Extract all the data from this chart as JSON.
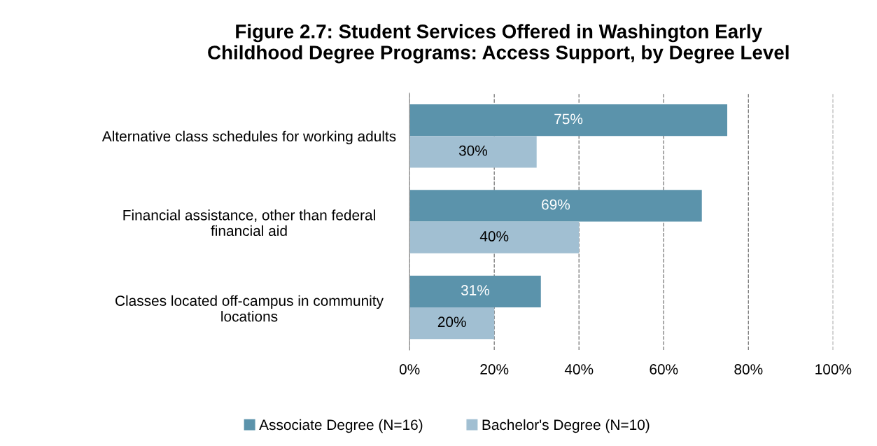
{
  "chart_data": {
    "type": "bar",
    "orientation": "horizontal",
    "title": "Figure 2.7: Student Services Offered in Washington Early\nChildhood Degree Programs: Access Support, by Degree Level",
    "categories": [
      "Alternative class schedules for working adults",
      "Financial assistance, other than federal\nfinancial aid",
      "Classes located off-campus in community\nlocations"
    ],
    "series": [
      {
        "name": "Associate Degree (N=16)",
        "color": "#5b93ab",
        "values": [
          75,
          69,
          31
        ],
        "value_labels": [
          "75%",
          "69%",
          "31%"
        ]
      },
      {
        "name": "Bachelor's Degree (N=10)",
        "color": "#a1bfd2",
        "values": [
          30,
          40,
          20
        ],
        "value_labels": [
          "30%",
          "40%",
          "20%"
        ]
      }
    ],
    "xlim": [
      0,
      100
    ],
    "xticks": [
      {
        "value": 0,
        "label": "0%"
      },
      {
        "value": 20,
        "label": "20%"
      },
      {
        "value": 40,
        "label": "40%"
      },
      {
        "value": 60,
        "label": "60%"
      },
      {
        "value": 80,
        "label": "80%"
      },
      {
        "value": 100,
        "label": "100%"
      }
    ],
    "grid": "x",
    "legend": "bottom"
  }
}
